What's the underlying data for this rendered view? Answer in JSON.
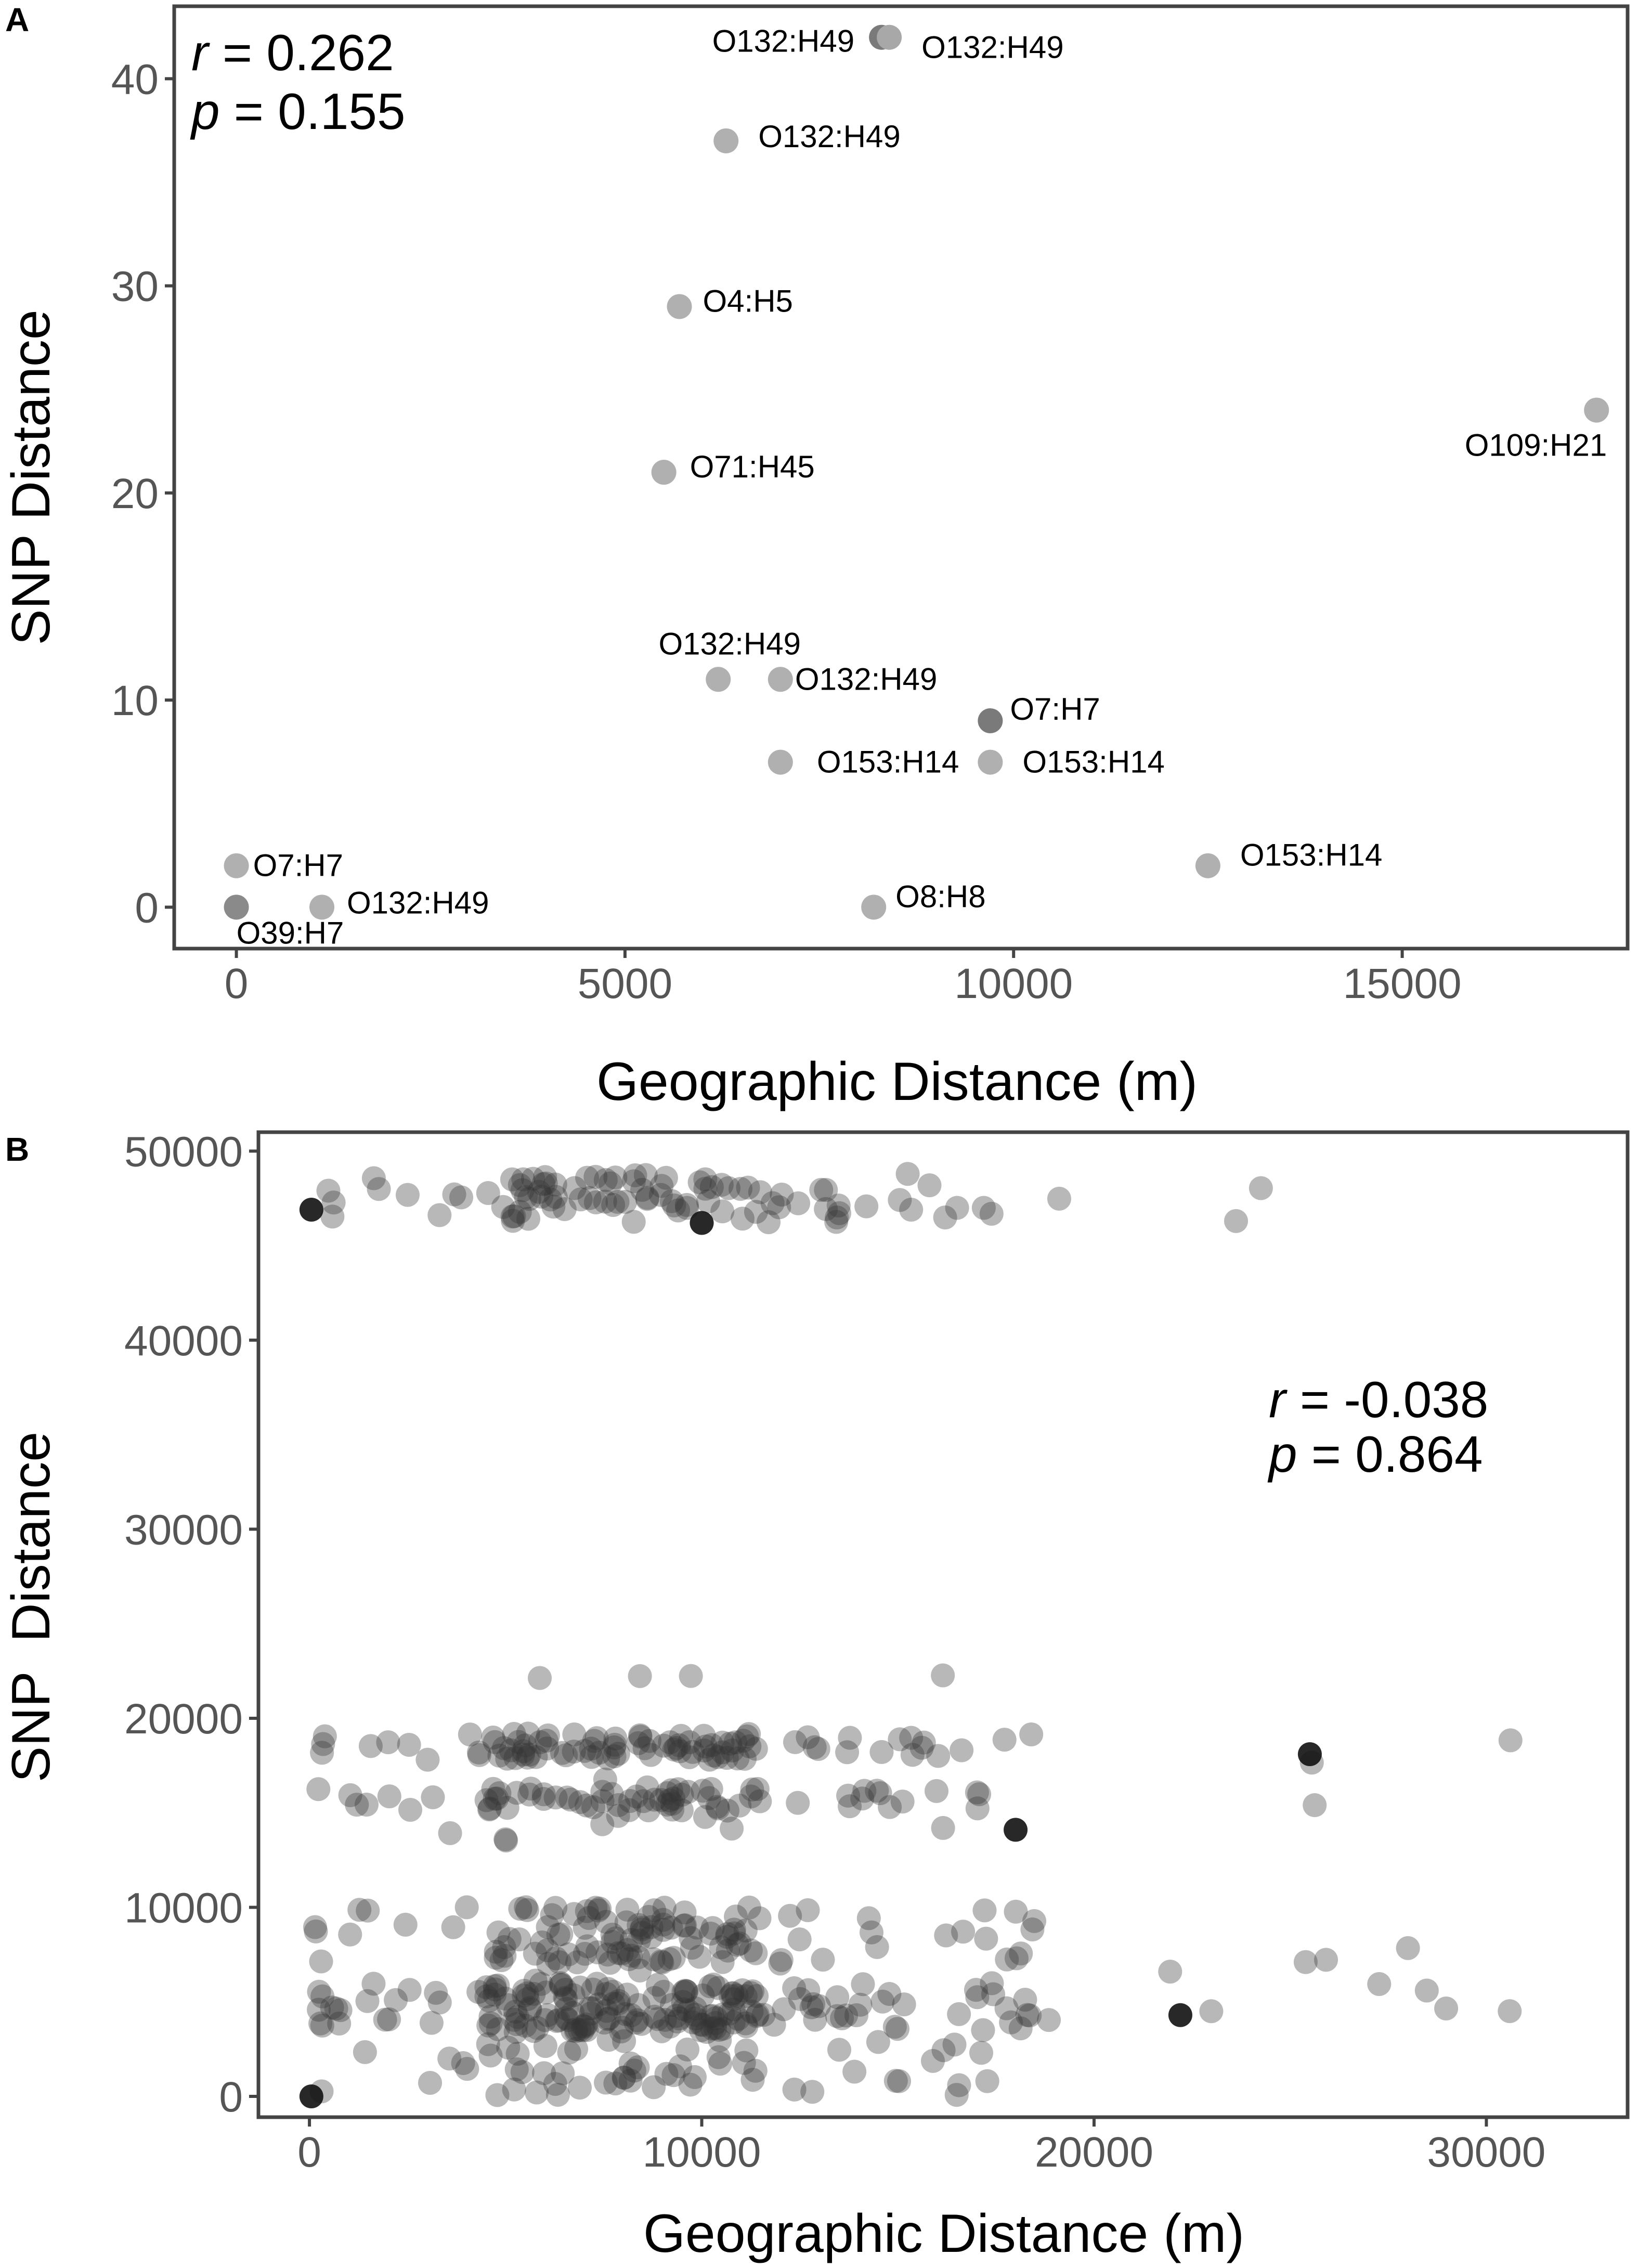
{
  "chart_data": [
    {
      "panel": "A",
      "type": "scatter",
      "xlabel": "Geographic Distance (m)",
      "ylabel": "SNP Distance",
      "xlim": [
        -800,
        17900
      ],
      "ylim": [
        -2,
        43.5
      ],
      "xticks": [
        0,
        5000,
        10000,
        15000
      ],
      "xtick_labels": [
        "0",
        "5000",
        "10000",
        "15000"
      ],
      "yticks": [
        0,
        10,
        20,
        30,
        40
      ],
      "ytick_labels": [
        "0",
        "10",
        "20",
        "30",
        "40"
      ],
      "grid": false,
      "stats": {
        "r_symbol": "r",
        "r_value": " = 0.262",
        "p_symbol": "p",
        "p_value": " = 0.155"
      },
      "points": [
        {
          "x": 8300,
          "y": 42,
          "label": "O132:H49",
          "color": "#7a7a7a"
        },
        {
          "x": 8400,
          "y": 42,
          "label": "O132:H49",
          "color": "#a8a8a8"
        },
        {
          "x": 6300,
          "y": 37,
          "label": "O132:H49",
          "color": "#b0b0b0"
        },
        {
          "x": 5700,
          "y": 29,
          "label": "O4:H5",
          "color": "#b0b0b0"
        },
        {
          "x": 17500,
          "y": 24,
          "label": "O109:H21",
          "color": "#b0b0b0"
        },
        {
          "x": 5500,
          "y": 21,
          "label": "O71:H45",
          "color": "#b0b0b0"
        },
        {
          "x": 6200,
          "y": 11,
          "label": "O132:H49",
          "color": "#b0b0b0"
        },
        {
          "x": 7000,
          "y": 11,
          "label": "O132:H49",
          "color": "#b0b0b0"
        },
        {
          "x": 9700,
          "y": 9,
          "label": "O7:H7",
          "color": "#7a7a7a"
        },
        {
          "x": 7000,
          "y": 7,
          "label": "O153:H14",
          "color": "#b0b0b0"
        },
        {
          "x": 9700,
          "y": 7,
          "label": "O153:H14",
          "color": "#b0b0b0"
        },
        {
          "x": 12500,
          "y": 2,
          "label": "O153:H14",
          "color": "#b0b0b0"
        },
        {
          "x": 0,
          "y": 2,
          "label": "O7:H7",
          "color": "#b0b0b0"
        },
        {
          "x": 0,
          "y": 0,
          "label": "O39:H7",
          "color": "#8a8a8a"
        },
        {
          "x": 1100,
          "y": 0,
          "label": "O132:H49",
          "color": "#b0b0b0"
        },
        {
          "x": 8200,
          "y": 0,
          "label": "O8:H8",
          "color": "#b0b0b0"
        }
      ]
    },
    {
      "panel": "B",
      "type": "scatter",
      "xlabel": "Geographic Distance (m)",
      "ylabel": "SNP  Distance",
      "xlim": [
        -1300,
        33600
      ],
      "ylim": [
        -1100,
        51000
      ],
      "xticks": [
        0,
        10000,
        20000,
        30000
      ],
      "xtick_labels": [
        "0",
        "10000",
        "20000",
        "30000"
      ],
      "yticks": [
        0,
        10000,
        20000,
        30000,
        40000,
        50000
      ],
      "ytick_labels": [
        "0",
        "10000",
        "20000",
        "30000",
        "40000",
        "50000"
      ],
      "grid": false,
      "stats": {
        "r_symbol": "r",
        "r_value": " = -0.038",
        "p_symbol": "p",
        "p_value": " = 0.864"
      },
      "point_opacity": 0.35,
      "clusters": [
        {
          "x_min": 0,
          "x_max": 19200,
          "y_min": 46200,
          "y_max": 48800,
          "n": 95
        },
        {
          "x_min": 22900,
          "x_max": 24600,
          "y_min": 46200,
          "y_max": 48500,
          "n": 3
        },
        {
          "x_min": 0,
          "x_max": 19100,
          "y_min": 17800,
          "y_max": 19200,
          "n": 95
        },
        {
          "x_min": 0,
          "x_max": 19000,
          "y_min": 15100,
          "y_max": 16300,
          "n": 70
        },
        {
          "x_min": 400,
          "x_max": 18900,
          "y_min": 13500,
          "y_max": 14900,
          "n": 8
        },
        {
          "x_min": 23900,
          "x_max": 32400,
          "y_min": 14600,
          "y_max": 19200,
          "n": 10
        },
        {
          "x_min": 6000,
          "x_max": 16600,
          "y_min": 22100,
          "y_max": 22300,
          "n": 4
        },
        {
          "x_min": 0,
          "x_max": 19200,
          "y_min": 7000,
          "y_max": 10100,
          "n": 120
        },
        {
          "x_min": 0,
          "x_max": 19200,
          "y_min": 3400,
          "y_max": 6000,
          "n": 190
        },
        {
          "x_min": 0,
          "x_max": 17500,
          "y_min": 0,
          "y_max": 3000,
          "n": 60
        },
        {
          "x_min": 21800,
          "x_max": 31900,
          "y_min": 3600,
          "y_max": 8400,
          "n": 14
        },
        {
          "x_min": 23700,
          "x_max": 23800,
          "y_min": 600,
          "y_max": 700,
          "n": 1
        }
      ],
      "dark_points": [
        {
          "x": 50,
          "y": 0
        },
        {
          "x": 50,
          "y": 46900
        },
        {
          "x": 10000,
          "y": 46200
        },
        {
          "x": 25500,
          "y": 18100
        },
        {
          "x": 22200,
          "y": 4300
        },
        {
          "x": 18000,
          "y": 14100
        }
      ]
    }
  ]
}
